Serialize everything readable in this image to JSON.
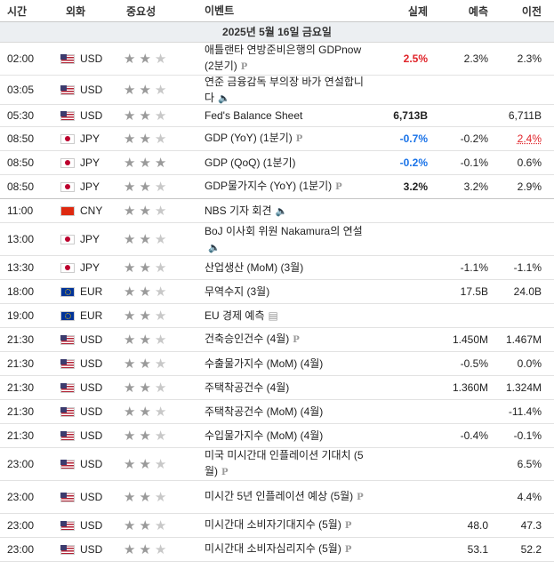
{
  "header": {
    "time": "시간",
    "currency": "외화",
    "importance": "중요성",
    "event": "이벤트",
    "actual": "실제",
    "forecast": "예측",
    "previous": "이전"
  },
  "date": "2025년 5월 16일 금요일",
  "rows": [
    {
      "time": "02:00",
      "cur": "USD",
      "flag": "us",
      "stars": 2,
      "event": "애틀랜타 연방준비은행의 GDPnow (2분기)",
      "icon": "P",
      "actual": "2.5%",
      "actual_style": "red",
      "forecast": "2.3%",
      "previous": "2.3%",
      "prev_style": ""
    },
    {
      "time": "03:05",
      "cur": "USD",
      "flag": "us",
      "stars": 2,
      "event": "연준 금융감독 부의장 바가 연설합니다",
      "icon": "speaker",
      "actual": "",
      "forecast": "",
      "previous": ""
    },
    {
      "time": "05:30",
      "cur": "USD",
      "flag": "us",
      "stars": 2,
      "event": "Fed's Balance Sheet",
      "icon": "",
      "actual": "6,713B",
      "actual_style": "bold",
      "forecast": "",
      "previous": "6,711B"
    },
    {
      "time": "08:50",
      "cur": "JPY",
      "flag": "jp",
      "stars": 2,
      "event": "GDP (YoY) (1분기)",
      "icon": "P",
      "actual": "-0.7%",
      "actual_style": "blue",
      "forecast": "-0.2%",
      "previous": "2.4%",
      "prev_style": "under-red"
    },
    {
      "time": "08:50",
      "cur": "JPY",
      "flag": "jp",
      "stars": 3,
      "event": "GDP (QoQ) (1분기)",
      "icon": "",
      "actual": "-0.2%",
      "actual_style": "blue",
      "forecast": "-0.1%",
      "previous": "0.6%"
    },
    {
      "time": "08:50",
      "cur": "JPY",
      "flag": "jp",
      "stars": 2,
      "event": "GDP물가지수 (YoY) (1분기)",
      "icon": "P",
      "actual": "3.2%",
      "actual_style": "bold",
      "forecast": "3.2%",
      "previous": "2.9%",
      "sep": true
    },
    {
      "time": "11:00",
      "cur": "CNY",
      "flag": "cn",
      "stars": 2,
      "event": "NBS 기자 회견",
      "icon": "speaker",
      "actual": "",
      "forecast": "",
      "previous": ""
    },
    {
      "time": "13:00",
      "cur": "JPY",
      "flag": "jp",
      "stars": 2,
      "event": "BoJ 이사회 위원 Nakamura의 연설",
      "icon": "speaker",
      "actual": "",
      "forecast": "",
      "previous": ""
    },
    {
      "time": "13:30",
      "cur": "JPY",
      "flag": "jp",
      "stars": 2,
      "event": "산업생산 (MoM) (3월)",
      "icon": "",
      "actual": "",
      "forecast": "-1.1%",
      "previous": "-1.1%"
    },
    {
      "time": "18:00",
      "cur": "EUR",
      "flag": "eu",
      "stars": 2,
      "event": "무역수지 (3월)",
      "icon": "",
      "actual": "",
      "forecast": "17.5B",
      "previous": "24.0B"
    },
    {
      "time": "19:00",
      "cur": "EUR",
      "flag": "eu",
      "stars": 2,
      "event": "EU 경제 예측",
      "icon": "doc",
      "actual": "",
      "forecast": "",
      "previous": ""
    },
    {
      "time": "21:30",
      "cur": "USD",
      "flag": "us",
      "stars": 2,
      "event": "건축승인건수 (4월)",
      "icon": "P",
      "actual": "",
      "forecast": "1.450M",
      "previous": "1.467M"
    },
    {
      "time": "21:30",
      "cur": "USD",
      "flag": "us",
      "stars": 2,
      "event": "수출물가지수 (MoM) (4월)",
      "icon": "",
      "actual": "",
      "forecast": "-0.5%",
      "previous": "0.0%"
    },
    {
      "time": "21:30",
      "cur": "USD",
      "flag": "us",
      "stars": 2,
      "event": "주택착공건수 (4월)",
      "icon": "",
      "actual": "",
      "forecast": "1.360M",
      "previous": "1.324M"
    },
    {
      "time": "21:30",
      "cur": "USD",
      "flag": "us",
      "stars": 2,
      "event": "주택착공건수 (MoM) (4월)",
      "icon": "",
      "actual": "",
      "forecast": "",
      "previous": "-11.4%"
    },
    {
      "time": "21:30",
      "cur": "USD",
      "flag": "us",
      "stars": 2,
      "event": "수입물가지수 (MoM) (4월)",
      "icon": "",
      "actual": "",
      "forecast": "-0.4%",
      "previous": "-0.1%"
    },
    {
      "time": "23:00",
      "cur": "USD",
      "flag": "us",
      "stars": 2,
      "event": "미국 미시간대 인플레이션 기대치 (5월)",
      "icon": "P",
      "actual": "",
      "forecast": "",
      "previous": "6.5%"
    },
    {
      "time": "23:00",
      "cur": "USD",
      "flag": "us",
      "stars": 2,
      "event": "미시간 5년 인플레이션 예상 (5월)",
      "icon": "P",
      "actual": "",
      "forecast": "",
      "previous": "4.4%"
    },
    {
      "time": "23:00",
      "cur": "USD",
      "flag": "us",
      "stars": 2,
      "event": "미시간대 소비자기대지수 (5월)",
      "icon": "P",
      "actual": "",
      "forecast": "48.0",
      "previous": "47.3"
    },
    {
      "time": "23:00",
      "cur": "USD",
      "flag": "us",
      "stars": 2,
      "event": "미시간대 소비자심리지수 (5월)",
      "icon": "P",
      "actual": "",
      "forecast": "53.1",
      "previous": "52.2"
    }
  ]
}
